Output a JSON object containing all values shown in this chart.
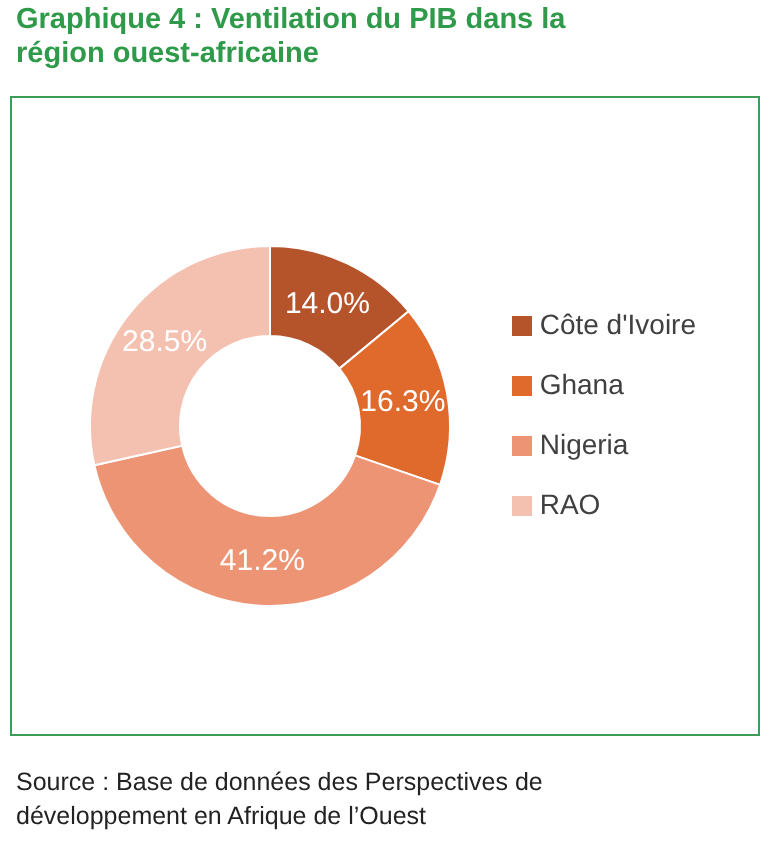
{
  "chart_data": {
    "type": "donut",
    "title": "Graphique 4 : Ventilation du PIB dans la région ouest-africaine",
    "categories": [
      "Côte d'Ivoire",
      "Ghana",
      "Nigeria",
      "RAO"
    ],
    "values": [
      14.0,
      16.3,
      41.2,
      28.5
    ],
    "colors": [
      "#b5532b",
      "#e0692c",
      "#ec9474",
      "#f4c1b1"
    ],
    "value_labels": [
      "14.0%",
      "16.3%",
      "41.2%",
      "28.5%"
    ],
    "legend": "right",
    "annotations": [
      "Source : Base de données des Perspectives de développement en Afrique de l’Ouest"
    ]
  }
}
